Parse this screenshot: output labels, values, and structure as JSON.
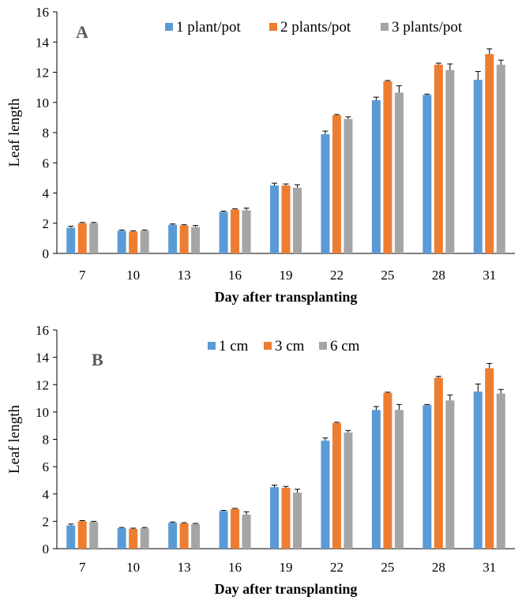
{
  "chart_data": [
    {
      "type": "bar",
      "panel_label": "A",
      "categories": [
        "7",
        "10",
        "13",
        "16",
        "19",
        "22",
        "25",
        "28",
        "31"
      ],
      "xlabel": "Day after transplanting",
      "ylabel": "Leaf length",
      "ylim": [
        0,
        16
      ],
      "yticks": [
        "0",
        "2",
        "4",
        "6",
        "8",
        "10",
        "12",
        "14",
        "16"
      ],
      "legend_position": "top",
      "series": [
        {
          "name": "1 plant/pot",
          "color": "#5B9BD5",
          "values": [
            1.7,
            1.5,
            1.9,
            2.75,
            4.5,
            7.9,
            10.15,
            10.5,
            11.5
          ],
          "errors": [
            0.1,
            0.05,
            0.05,
            0.05,
            0.15,
            0.2,
            0.2,
            0.05,
            0.55
          ]
        },
        {
          "name": "2 plants/pot",
          "color": "#ED7D31",
          "values": [
            2.0,
            1.45,
            1.85,
            2.9,
            4.5,
            9.15,
            11.4,
            12.5,
            13.2
          ],
          "errors": [
            0.05,
            0.05,
            0.05,
            0.05,
            0.1,
            0.05,
            0.05,
            0.1,
            0.35
          ]
        },
        {
          "name": "3 plants/pot",
          "color": "#A5A5A5",
          "values": [
            2.0,
            1.5,
            1.75,
            2.85,
            4.35,
            8.9,
            10.65,
            12.15,
            12.5
          ],
          "errors": [
            0.05,
            0.05,
            0.1,
            0.15,
            0.2,
            0.15,
            0.45,
            0.4,
            0.3
          ]
        }
      ]
    },
    {
      "type": "bar",
      "panel_label": "B",
      "categories": [
        "7",
        "10",
        "13",
        "16",
        "19",
        "22",
        "25",
        "28",
        "31"
      ],
      "xlabel": "Day after transplanting",
      "ylabel": "Leaf length",
      "ylim": [
        0,
        16
      ],
      "yticks": [
        "0",
        "2",
        "4",
        "6",
        "8",
        "10",
        "12",
        "14",
        "16"
      ],
      "legend_position": "top",
      "series": [
        {
          "name": "1 cm",
          "color": "#5B9BD5",
          "values": [
            1.7,
            1.5,
            1.9,
            2.75,
            4.5,
            7.9,
            10.15,
            10.5,
            11.5
          ],
          "errors": [
            0.1,
            0.05,
            0.05,
            0.05,
            0.15,
            0.2,
            0.25,
            0.05,
            0.55
          ]
        },
        {
          "name": "3 cm",
          "color": "#ED7D31",
          "values": [
            2.0,
            1.45,
            1.85,
            2.9,
            4.45,
            9.2,
            11.4,
            12.5,
            13.2
          ],
          "errors": [
            0.05,
            0.05,
            0.05,
            0.05,
            0.1,
            0.05,
            0.05,
            0.1,
            0.35
          ]
        },
        {
          "name": "6 cm",
          "color": "#A5A5A5",
          "values": [
            1.95,
            1.5,
            1.8,
            2.5,
            4.1,
            8.5,
            10.15,
            10.85,
            11.35
          ],
          "errors": [
            0.05,
            0.05,
            0.05,
            0.2,
            0.25,
            0.15,
            0.4,
            0.4,
            0.3
          ]
        }
      ]
    }
  ]
}
